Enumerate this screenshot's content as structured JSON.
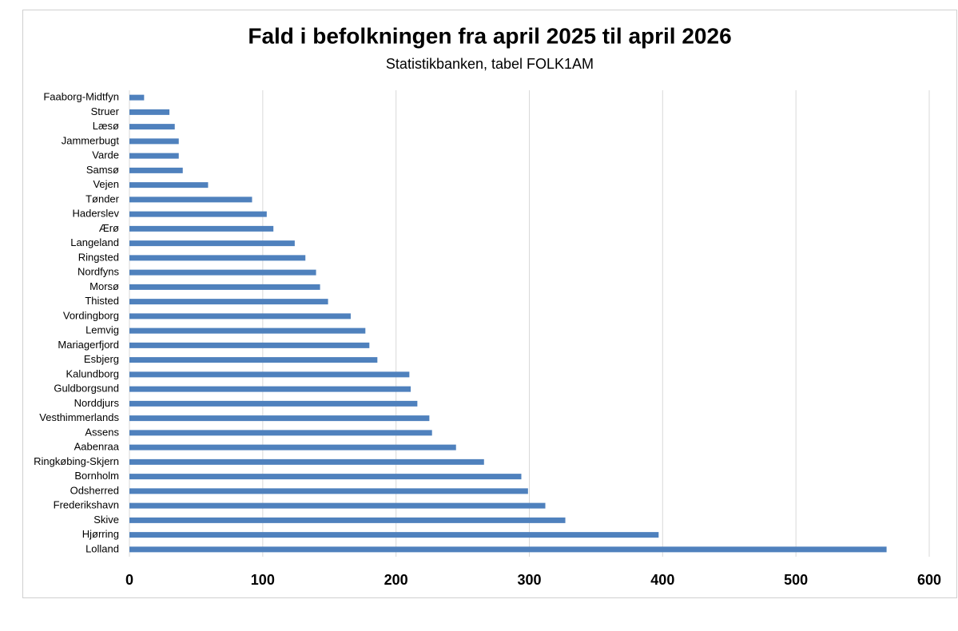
{
  "chart_data": {
    "type": "hbar",
    "title": "Fald i befolkningen fra april 2025 til april 2026",
    "subtitle": "Statistikbanken, tabel FOLK1AM",
    "categories": [
      "Faaborg-Midtfyn",
      "Struer",
      "Læsø",
      "Jammerbugt",
      "Varde",
      "Samsø",
      "Vejen",
      "Tønder",
      "Haderslev",
      "Ærø",
      "Langeland",
      "Ringsted",
      "Nordfyns",
      "Morsø",
      "Thisted",
      "Vordingborg",
      "Lemvig",
      "Mariagerfjord",
      "Esbjerg",
      "Kalundborg",
      "Guldborgsund",
      "Norddjurs",
      "Vesthimmerlands",
      "Assens",
      "Aabenraa",
      "Ringkøbing-Skjern",
      "Bornholm",
      "Odsherred",
      "Frederikshavn",
      "Skive",
      "Hjørring",
      "Lolland"
    ],
    "values": [
      11,
      30,
      34,
      37,
      37,
      40,
      59,
      92,
      103,
      108,
      124,
      132,
      140,
      143,
      149,
      166,
      177,
      180,
      186,
      210,
      211,
      216,
      225,
      227,
      245,
      266,
      294,
      299,
      312,
      327,
      397,
      568
    ],
    "color": "#4f81bd",
    "xlim": [
      0,
      600
    ],
    "xticks": [
      0,
      100,
      200,
      300,
      400,
      500,
      600
    ],
    "grid": true
  }
}
